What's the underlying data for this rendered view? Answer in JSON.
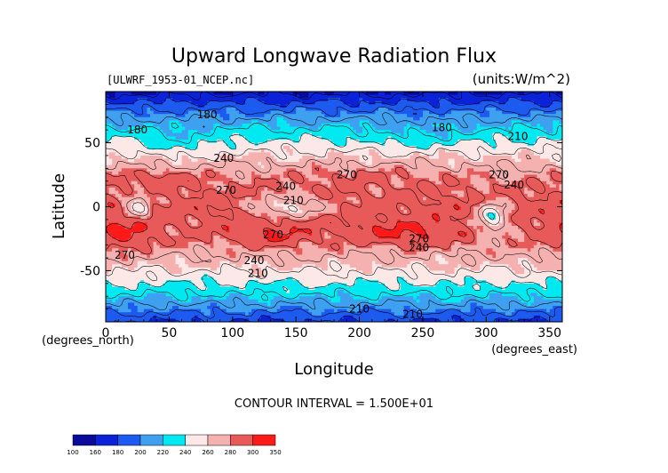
{
  "chart_data": {
    "type": "heatmap",
    "title": "Upward Longwave Radiation Flux",
    "subtitle_left": "[ULWRF_1953-01_NCEP.nc]",
    "subtitle_right": "(units:W/m^2)",
    "xlabel": "Longitude",
    "ylabel": "Latitude",
    "x_unit_label": "(degrees_east)",
    "y_unit_label": "(degrees_north)",
    "xlim": [
      0,
      360
    ],
    "ylim": [
      -90,
      90
    ],
    "x_ticks": [
      0,
      50,
      100,
      150,
      200,
      250,
      300,
      350
    ],
    "y_ticks": [
      -50,
      0,
      50
    ],
    "contour_interval_text": "CONTOUR INTERVAL = 1.500E+01",
    "contour_labels": [
      {
        "text": "180",
        "lon": 25,
        "lat": 60
      },
      {
        "text": "180",
        "lon": 80,
        "lat": 72
      },
      {
        "text": "180",
        "lon": 265,
        "lat": 62
      },
      {
        "text": "210",
        "lon": 325,
        "lat": 55
      },
      {
        "text": "240",
        "lon": 93,
        "lat": 38
      },
      {
        "text": "240",
        "lon": 142,
        "lat": 16
      },
      {
        "text": "240",
        "lon": 322,
        "lat": 17
      },
      {
        "text": "270",
        "lon": 95,
        "lat": 13
      },
      {
        "text": "270",
        "lon": 190,
        "lat": 25
      },
      {
        "text": "270",
        "lon": 310,
        "lat": 25
      },
      {
        "text": "210",
        "lon": 148,
        "lat": 5
      },
      {
        "text": "270",
        "lon": 132,
        "lat": -22
      },
      {
        "text": "270",
        "lon": 15,
        "lat": -38
      },
      {
        "text": "240",
        "lon": 117,
        "lat": -42
      },
      {
        "text": "210",
        "lon": 120,
        "lat": -52
      },
      {
        "text": "240",
        "lon": 247,
        "lat": -32
      },
      {
        "text": "270",
        "lon": 247,
        "lat": -25
      },
      {
        "text": "210",
        "lon": 200,
        "lat": -80
      },
      {
        "text": "210",
        "lon": 242,
        "lat": -84
      }
    ],
    "colorbar": {
      "levels": [
        100,
        160,
        180,
        200,
        220,
        240,
        260,
        280,
        300,
        350
      ],
      "colors": [
        "#0a0a9a",
        "#0b22d8",
        "#1c5af0",
        "#3fa0f0",
        "#00e8f0",
        "#fde8e8",
        "#f5b0b0",
        "#e85a5a",
        "#ff1a1a"
      ]
    },
    "field_description": "Zonal bands of outgoing longwave flux: low values (100-180) over polar and northern high latitudes, high values (270-300) over subtropical deserts and oceans, minima over tropical convective land regions."
  }
}
